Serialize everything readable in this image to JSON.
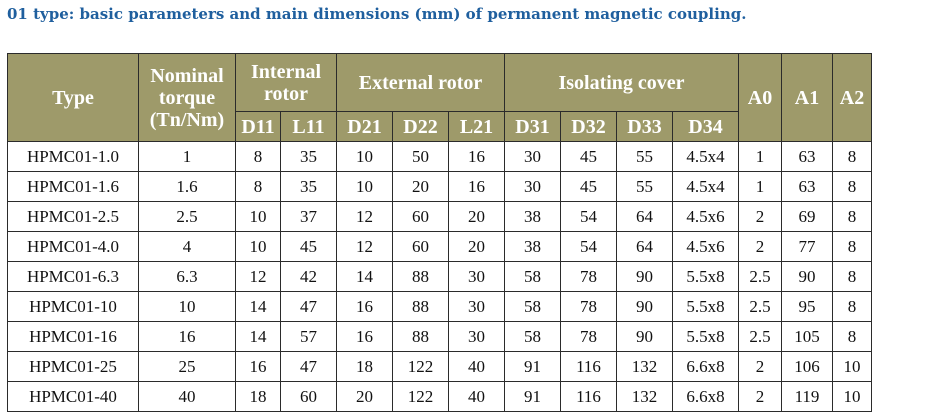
{
  "title": "01 type: basic parameters and main dimensions (mm) of permanent magnetic coupling.",
  "colors": {
    "title": "#1f5f9e",
    "header_bg": "#9e9a6a",
    "header_text": "#ffffff"
  },
  "header": {
    "type": "Type",
    "nominal_line1": "Nominal",
    "nominal_line2": "torque",
    "nominal_line3": "(Tn/Nm)",
    "internal_line1": "Internal",
    "internal_line2": "rotor",
    "external": "External rotor",
    "isolating": "Isolating cover",
    "a0": "A0",
    "a1": "A1",
    "a2": "A2",
    "sub": [
      "D11",
      "L11",
      "D21",
      "D22",
      "L21",
      "D31",
      "D32",
      "D33",
      "D34"
    ]
  },
  "rows": [
    [
      "HPMC01-1.0",
      "1",
      "8",
      "35",
      "10",
      "50",
      "16",
      "30",
      "45",
      "55",
      "4.5x4",
      "1",
      "63",
      "8"
    ],
    [
      "HPMC01-1.6",
      "1.6",
      "8",
      "35",
      "10",
      "20",
      "16",
      "30",
      "45",
      "55",
      "4.5x4",
      "1",
      "63",
      "8"
    ],
    [
      "HPMC01-2.5",
      "2.5",
      "10",
      "37",
      "12",
      "60",
      "20",
      "38",
      "54",
      "64",
      "4.5x6",
      "2",
      "69",
      "8"
    ],
    [
      "HPMC01-4.0",
      "4",
      "10",
      "45",
      "12",
      "60",
      "20",
      "38",
      "54",
      "64",
      "4.5x6",
      "2",
      "77",
      "8"
    ],
    [
      "HPMC01-6.3",
      "6.3",
      "12",
      "42",
      "14",
      "88",
      "30",
      "58",
      "78",
      "90",
      "5.5x8",
      "2.5",
      "90",
      "8"
    ],
    [
      "HPMC01-10",
      "10",
      "14",
      "47",
      "16",
      "88",
      "30",
      "58",
      "78",
      "90",
      "5.5x8",
      "2.5",
      "95",
      "8"
    ],
    [
      "HPMC01-16",
      "16",
      "14",
      "57",
      "16",
      "88",
      "30",
      "58",
      "78",
      "90",
      "5.5x8",
      "2.5",
      "105",
      "8"
    ],
    [
      "HPMC01-25",
      "25",
      "16",
      "47",
      "18",
      "122",
      "40",
      "91",
      "116",
      "132",
      "6.6x8",
      "2",
      "106",
      "10"
    ],
    [
      "HPMC01-40",
      "40",
      "18",
      "60",
      "20",
      "122",
      "40",
      "91",
      "116",
      "132",
      "6.6x8",
      "2",
      "119",
      "10"
    ]
  ]
}
